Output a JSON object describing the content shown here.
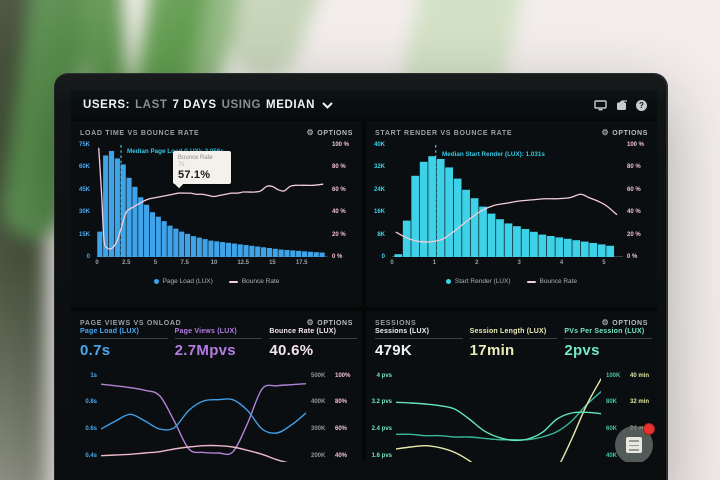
{
  "header": {
    "users": "USERS:",
    "last": "LAST",
    "days": "7 DAYS",
    "using": "USING",
    "median": "MEDIAN"
  },
  "colors": {
    "page_load_blue": "#3fa3ea",
    "start_render_cyan": "#3dd2e8",
    "bounce_pink": "#f3cdd7",
    "median_cyan": "#36c6e4",
    "accent_purple": "#b57de2",
    "accent_yellow": "#ecedb9",
    "accent_mint": "#72e8c0"
  },
  "panel1": {
    "title": "LOAD TIME VS BOUNCE RATE",
    "options": "OPTIONS",
    "annotation": "Median Page Load (LUX): 2.056s",
    "tooltip": {
      "line1": "Bounce Rate",
      "line2": "7s",
      "value": "57.1%"
    },
    "legend": [
      {
        "type": "dot",
        "color": "#3fa3ea",
        "label": "Page Load (LUX)"
      },
      {
        "type": "line",
        "color": "#f3cdd7",
        "label": "Bounce Rate"
      }
    ],
    "axes": {
      "left": {
        "color": "#4aa9f0",
        "labels": [
          "75K",
          "60K",
          "45K",
          "30K",
          "15K",
          "0"
        ]
      },
      "right": {
        "color": "#eec0cf",
        "labels": [
          "100 %",
          "80 %",
          "60 %",
          "40 %",
          "20 %",
          "0 %"
        ]
      },
      "x": {
        "color": "#9aa2a6",
        "ticks": [
          0,
          2.5,
          5,
          7.5,
          10,
          12.5,
          15,
          17.5
        ]
      }
    }
  },
  "panel2": {
    "title": "START RENDER VS BOUNCE RATE",
    "options": "OPTIONS",
    "annotation": "Median Start Render (LUX): 1.031s",
    "legend": [
      {
        "type": "dot",
        "color": "#3dd2e8",
        "label": "Start Render (LUX)"
      },
      {
        "type": "line",
        "color": "#f3cdd7",
        "label": "Bounce Rate"
      }
    ],
    "axes": {
      "left": {
        "color": "#3dd2e8",
        "labels": [
          "40K",
          "32K",
          "24K",
          "16K",
          "8K",
          "0"
        ]
      },
      "right": {
        "color": "#eec0cf",
        "labels": [
          "100 %",
          "80 %",
          "60 %",
          "40 %",
          "20 %",
          "0 %"
        ]
      },
      "x": {
        "color": "#9aa2a6",
        "ticks": [
          0,
          1,
          2,
          3,
          4,
          5
        ]
      }
    }
  },
  "panel3": {
    "title": "PAGE VIEWS VS ONLOAD",
    "options": "OPTIONS",
    "metrics": [
      {
        "label": "Page Load (LUX)",
        "value": "0.7s",
        "color": "#4aa9f0"
      },
      {
        "label": "Page Views (LUX)",
        "value": "2.7Mpvs",
        "color": "#b57de2"
      },
      {
        "label": "Bounce Rate (LUX)",
        "value": "40.6%",
        "color": "#f4e6ec"
      }
    ],
    "axes": {
      "left": {
        "color": "#4aa9f0",
        "scale": [
          0.33,
          1.05
        ],
        "ticks": [
          {
            "v": 1,
            "label": "1s"
          },
          {
            "v": 0.8,
            "label": "0.8s"
          },
          {
            "v": 0.6,
            "label": "0.6s"
          },
          {
            "v": 0.4,
            "label": "0.4s"
          }
        ]
      },
      "right1": {
        "color": "#8e979b",
        "scale": [
          165,
          525
        ],
        "ticks": [
          {
            "v": 500,
            "label": "500K"
          },
          {
            "v": 400,
            "label": "400K"
          },
          {
            "v": 300,
            "label": "300K"
          },
          {
            "v": 200,
            "label": "200K"
          }
        ]
      },
      "right2": {
        "color": "#eec0cf",
        "scale": [
          33,
          105
        ],
        "ticks": [
          {
            "v": 100,
            "label": "100%"
          },
          {
            "v": 80,
            "label": "80%"
          },
          {
            "v": 60,
            "label": "60%"
          },
          {
            "v": 40,
            "label": "40%"
          }
        ]
      }
    }
  },
  "panel4": {
    "title": "SESSIONS",
    "options": "OPTIONS",
    "metrics": [
      {
        "label": "Sessions (LUX)",
        "value": "479K",
        "color": "#eef2f2"
      },
      {
        "label": "Session Length (LUX)",
        "value": "17min",
        "color": "#ecedb9"
      },
      {
        "label": "PVs Per Session (LUX)",
        "value": "2pvs",
        "color": "#72e8c0"
      }
    ],
    "axes": {
      "left": {
        "color": "#72e8c0",
        "scale": [
          1.32,
          4.2
        ],
        "ticks": [
          {
            "v": 4,
            "label": "4 pvs"
          },
          {
            "v": 3.2,
            "label": "3.2 pvs"
          },
          {
            "v": 2.4,
            "label": "2.4 pvs"
          },
          {
            "v": 1.6,
            "label": "1.6 pvs"
          }
        ]
      },
      "right1": {
        "color": "#49c3a4",
        "scale": [
          33,
          105
        ],
        "ticks": [
          {
            "v": 100,
            "label": "100K"
          },
          {
            "v": 80,
            "label": "80K"
          },
          {
            "v": 60,
            "label": "60K"
          },
          {
            "v": 40,
            "label": "40K"
          }
        ]
      },
      "right2": {
        "color": "#e3e4a5",
        "scale": [
          13.2,
          42
        ],
        "ticks": [
          {
            "v": 40,
            "label": "40 min"
          },
          {
            "v": 32,
            "label": "32 min"
          },
          {
            "v": 24,
            "label": "24 min"
          }
        ]
      }
    }
  },
  "chart_data": [
    {
      "id": "load_time",
      "type": "bar",
      "title": "LOAD TIME VS BOUNCE RATE",
      "xlim": [
        0,
        19.75
      ],
      "ylim_left_k": [
        0,
        75
      ],
      "ylim_right_pct": [
        0,
        100
      ],
      "bars": {
        "name": "Page Load (LUX)",
        "color": "#3fa3ea",
        "x_start": 0,
        "bin_width": 0.5,
        "values_k": [
          17,
          68,
          71,
          66,
          62,
          53,
          47,
          40,
          35,
          30,
          27,
          24,
          21,
          19,
          17,
          15.5,
          14,
          13,
          12,
          11,
          10.5,
          10,
          9.5,
          9,
          8.5,
          8,
          7.5,
          7,
          6.5,
          6,
          5.5,
          5,
          4.7,
          4.4,
          4.1,
          3.8,
          3.5,
          3.2,
          3
        ]
      },
      "line": {
        "name": "Bounce Rate",
        "color": "#f3cdd7",
        "points": [
          [
            0.15,
            97
          ],
          [
            0.4,
            55
          ],
          [
            0.6,
            15
          ],
          [
            0.9,
            8
          ],
          [
            1.3,
            8
          ],
          [
            1.7,
            14
          ],
          [
            2.1,
            27
          ],
          [
            2.5,
            40
          ],
          [
            3,
            44
          ],
          [
            3.5,
            47
          ],
          [
            4,
            50
          ],
          [
            4.5,
            52
          ],
          [
            5,
            53
          ],
          [
            5.5,
            54
          ],
          [
            6,
            55
          ],
          [
            6.5,
            56
          ],
          [
            7,
            57.1
          ],
          [
            7.5,
            57
          ],
          [
            8,
            57
          ],
          [
            8.5,
            56
          ],
          [
            9,
            56
          ],
          [
            9.5,
            55
          ],
          [
            10,
            54
          ],
          [
            10.5,
            55
          ],
          [
            11,
            56
          ],
          [
            11.5,
            57
          ],
          [
            12,
            57
          ],
          [
            12.5,
            58
          ],
          [
            13,
            58
          ],
          [
            13.5,
            58
          ],
          [
            14,
            59
          ],
          [
            14.5,
            63
          ],
          [
            15,
            63
          ],
          [
            15.5,
            60
          ],
          [
            16,
            59
          ],
          [
            16.5,
            63
          ],
          [
            17,
            64
          ],
          [
            17.5,
            64
          ],
          [
            18,
            64
          ],
          [
            18.5,
            64
          ],
          [
            19.3,
            65
          ]
        ]
      },
      "median": {
        "value": 2.056,
        "color": "#36c6e4",
        "label": "Median Page Load (LUX): 2.056s"
      }
    },
    {
      "id": "start_render",
      "type": "bar",
      "title": "START RENDER VS BOUNCE RATE",
      "xlim": [
        0,
        5.45
      ],
      "ylim_left_k": [
        0,
        40
      ],
      "ylim_right_pct": [
        0,
        100
      ],
      "bars": {
        "name": "Start Render (LUX)",
        "color": "#3dd2e8",
        "x_start": 0.05,
        "bin_width": 0.2,
        "values_k": [
          1,
          13,
          29,
          34,
          36,
          35,
          32,
          28,
          24,
          21,
          18,
          15.5,
          13.5,
          12,
          11,
          10,
          9,
          8,
          7.5,
          7,
          6.5,
          6,
          5.5,
          5,
          4.5,
          4
        ]
      },
      "line": {
        "name": "Bounce Rate",
        "color": "#f3cdd7",
        "points": [
          [
            0.1,
            22
          ],
          [
            0.35,
            17
          ],
          [
            0.6,
            14
          ],
          [
            0.9,
            13.5
          ],
          [
            1.2,
            16
          ],
          [
            1.5,
            24
          ],
          [
            1.8,
            33
          ],
          [
            2.1,
            41
          ],
          [
            2.4,
            46
          ],
          [
            2.7,
            48
          ],
          [
            3.0,
            50
          ],
          [
            3.3,
            51
          ],
          [
            3.6,
            52
          ],
          [
            3.9,
            52
          ],
          [
            4.2,
            53
          ],
          [
            4.45,
            56
          ],
          [
            4.65,
            53
          ],
          [
            4.85,
            50
          ],
          [
            5.05,
            46
          ],
          [
            5.3,
            38
          ]
        ]
      },
      "median": {
        "value": 1.031,
        "color": "#36c6e4",
        "label": "Median Start Render (LUX): 1.031s"
      }
    },
    {
      "id": "page_views_onload",
      "type": "line",
      "title": "PAGE VIEWS VS ONLOAD",
      "x_note": "last 7 days, evenly spaced samples",
      "series": [
        {
          "name": "Page Views (LUX)",
          "color": "#b183d6",
          "unit": "views_k",
          "scale": [
            165,
            525
          ],
          "values": [
            468,
            462,
            455,
            445,
            425,
            330,
            225,
            212,
            210,
            214,
            320,
            450,
            462,
            466,
            470
          ]
        },
        {
          "name": "Page Load (LUX)",
          "color": "#3f9fe8",
          "unit": "seconds",
          "scale": [
            0.33,
            1.05
          ],
          "values": [
            0.6,
            0.66,
            0.71,
            0.66,
            0.6,
            0.61,
            0.74,
            0.81,
            0.82,
            0.82,
            0.74,
            0.6,
            0.57,
            0.63,
            0.72
          ]
        },
        {
          "name": "Bounce Rate (LUX)",
          "color": "#edb9c8",
          "unit": "percent",
          "scale": [
            33,
            105
          ],
          "values": [
            40,
            40.5,
            41,
            42,
            43,
            45,
            46.5,
            47.5,
            47.5,
            46.5,
            44,
            41,
            37,
            34,
            31
          ]
        }
      ]
    },
    {
      "id": "sessions",
      "type": "line",
      "title": "SESSIONS",
      "x_note": "last 7 days, evenly spaced samples",
      "series": [
        {
          "name": "Sessions (LUX)",
          "color": "#35b89a",
          "unit": "sessions_k",
          "scale": [
            33,
            105
          ],
          "values": [
            56,
            56,
            55,
            55,
            54,
            54,
            53,
            52,
            52,
            52,
            54,
            58,
            66,
            78,
            88
          ]
        },
        {
          "name": "Session Length (LUX)",
          "color": "#e9e9ae",
          "unit": "minutes",
          "scale": [
            13.2,
            42
          ],
          "values": [
            18,
            18.6,
            19,
            18.4,
            17,
            14.5,
            11,
            7,
            4,
            3.5,
            6,
            12,
            21,
            31,
            39
          ]
        },
        {
          "name": "PVs Per Session (LUX)",
          "color": "#63e6b8",
          "unit": "pvs",
          "scale": [
            1.32,
            4.2
          ],
          "values": [
            3.2,
            3.18,
            3.15,
            3.1,
            3.0,
            2.7,
            2.35,
            2.15,
            2.06,
            2.1,
            2.3,
            2.7,
            2.88,
            2.9,
            2.86
          ]
        }
      ]
    }
  ]
}
